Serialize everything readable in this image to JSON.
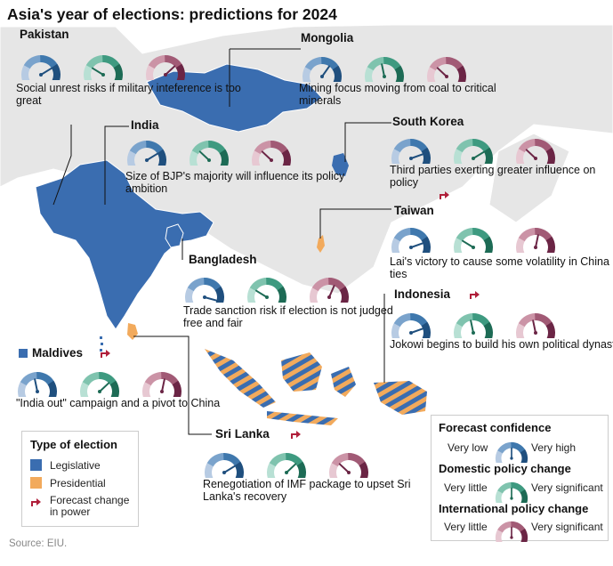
{
  "title": "Asia's year of elections: predictions for 2024",
  "source": "Source: EIU.",
  "colors": {
    "legislative": "#3a6db0",
    "presidential": "#f2aa5c",
    "change": "#b01f3a",
    "confidence": [
      "#b7cbe3",
      "#7aa3cc",
      "#3f78ad",
      "#1f4f7e"
    ],
    "domestic": [
      "#b8e0d4",
      "#7fc3ae",
      "#3e9a80",
      "#1d6b55"
    ],
    "international": [
      "#e7c8d2",
      "#cb93a6",
      "#a15a75",
      "#6b2545"
    ]
  },
  "countries": [
    {
      "name": "Pakistan",
      "description": "Social unrest risks if military inteference is too great",
      "gauges": {
        "confidence": 0.75,
        "domestic": 0.25,
        "international": 0.7
      },
      "change": false
    },
    {
      "name": "Mongolia",
      "description": "Mining focus moving from coal to critical minerals",
      "gauges": {
        "confidence": 0.65,
        "domestic": 0.45,
        "international": 0.3
      },
      "change": false
    },
    {
      "name": "India",
      "description": "Size of BJP's majority will influence its policy ambition",
      "gauges": {
        "confidence": 0.75,
        "domestic": 0.3,
        "international": 0.3
      },
      "change": false
    },
    {
      "name": "South Korea",
      "description": "Third parties exerting greater influence on policy",
      "gauges": {
        "confidence": 0.8,
        "domestic": 0.75,
        "international": 0.3
      },
      "change": true
    },
    {
      "name": "Taiwan",
      "description": "Lai's victory to cause some volatility in China ties",
      "gauges": {
        "confidence": 0.8,
        "domestic": 0.25,
        "international": 0.55
      },
      "change": false
    },
    {
      "name": "Bangladesh",
      "description": "Trade sanction risk if election is not judged free and fair",
      "gauges": {
        "confidence": 0.95,
        "domestic": 0.25,
        "international": 0.6
      },
      "change": false
    },
    {
      "name": "Indonesia",
      "description": "Jokowi begins to build his own political dynasty",
      "gauges": {
        "confidence": 0.8,
        "domestic": 0.45,
        "international": 0.45
      },
      "change": true
    },
    {
      "name": "Maldives",
      "description": "\"India out\" campaign and a pivot to China",
      "gauges": {
        "confidence": 0.45,
        "domestic": 0.7,
        "international": 0.55
      },
      "change": true
    },
    {
      "name": "Sri Lanka",
      "description": "Renegotiation of IMF package to upset Sri Lanka's recovery",
      "gauges": {
        "confidence": 0.75,
        "domestic": 0.7,
        "international": 0.3
      },
      "change": true
    }
  ],
  "legend_type": {
    "title": "Type of election",
    "legislative": "Legislative",
    "presidential": "Presidential",
    "change": "Forecast change in power"
  },
  "legend_scales": {
    "confidence": {
      "title": "Forecast confidence",
      "low": "Very low",
      "high": "Very high",
      "value": 0.5
    },
    "domestic": {
      "title": "Domestic policy change",
      "low": "Very little",
      "high": "Very significant",
      "value": 0.5
    },
    "international": {
      "title": "International policy change",
      "low": "Very little",
      "high": "Very significant",
      "value": 0.5
    }
  }
}
